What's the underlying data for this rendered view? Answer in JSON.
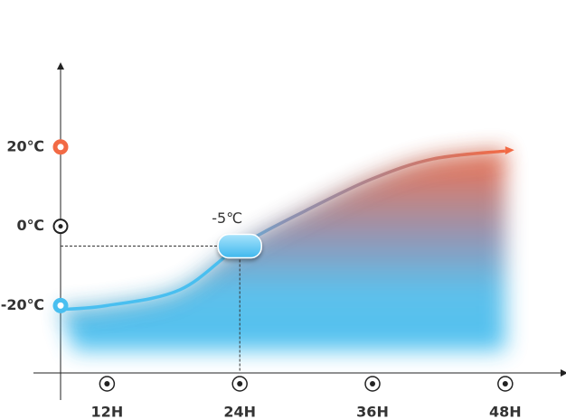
{
  "chart_data": {
    "type": "line",
    "x": [
      7.8,
      12,
      18.6,
      24,
      30,
      36,
      41.5,
      48
    ],
    "series": [
      {
        "values": [
          -21,
          -20,
          -16,
          -5,
          4,
          12,
          17,
          19
        ],
        "color": "#f26a45",
        "start_color": "#49bff0"
      }
    ],
    "xlim": [
      7.8,
      53
    ],
    "xticks": [
      {
        "value": 12,
        "label": "12H"
      },
      {
        "value": 24,
        "label": "24H"
      },
      {
        "value": 36,
        "label": "36H"
      },
      {
        "value": 48,
        "label": "48H"
      }
    ],
    "ylim": [
      -37,
      40
    ],
    "yticks": [
      {
        "value": 20,
        "label": "20℃"
      },
      {
        "value": 0,
        "label": "0℃"
      },
      {
        "value": -20,
        "label": "-20℃"
      }
    ],
    "annotation": {
      "x": 24,
      "value": -5,
      "label": "-5℃"
    }
  }
}
